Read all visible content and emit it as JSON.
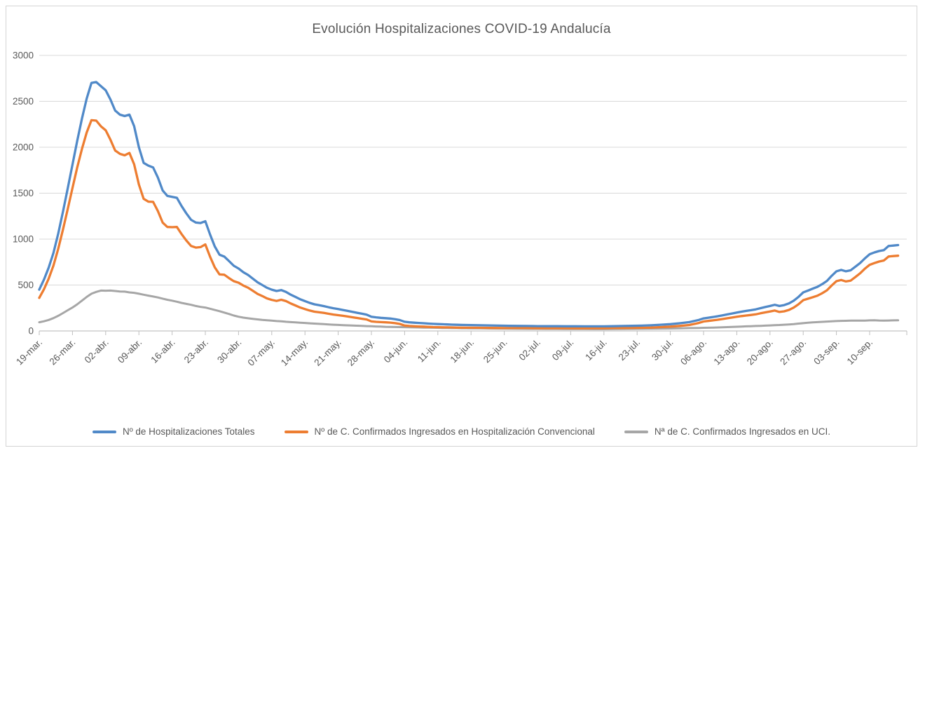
{
  "style": {
    "background": "#ffffff",
    "border_color": "#d4d4d4",
    "grid_color": "#d9d9d9",
    "axis_color": "#c3c3c3",
    "tick_color": "#bfbfbf",
    "text_color": "#595959"
  },
  "chart_data": {
    "type": "line",
    "title": "Evolución Hospitalizaciones COVID-19 Andalucía",
    "xlabel": "",
    "ylabel": "",
    "ylim": [
      0,
      3000
    ],
    "y_ticks": [
      0,
      500,
      1000,
      1500,
      2000,
      2500,
      3000
    ],
    "grid": true,
    "legend_position": "bottom",
    "x_unit": "days since 19-mar",
    "x_range_days": [
      0,
      181
    ],
    "x_tick_days": [
      0,
      7,
      14,
      21,
      28,
      35,
      42,
      49,
      56,
      63,
      70,
      77,
      84,
      91,
      98,
      105,
      112,
      119,
      126,
      133,
      140,
      147,
      154,
      161,
      168,
      175
    ],
    "x_tick_labels": [
      "19-mar.",
      "26-mar.",
      "02-abr.",
      "09-abr.",
      "16-abr.",
      "23-abr.",
      "30-abr.",
      "07-may.",
      "14-may.",
      "21-may.",
      "28-may.",
      "04-jun.",
      "11-jun.",
      "18-jun.",
      "25-jun.",
      "02-jul.",
      "09-jul.",
      "16-jul.",
      "23-jul.",
      "30-jul.",
      "06-ago.",
      "13-ago.",
      "20-ago.",
      "27-ago.",
      "03-sep.",
      "10-sep."
    ],
    "x": [
      0,
      1,
      2,
      3,
      4,
      5,
      6,
      7,
      8,
      9,
      10,
      11,
      12,
      13,
      14,
      15,
      16,
      17,
      18,
      19,
      20,
      21,
      22,
      23,
      24,
      25,
      26,
      27,
      28,
      29,
      30,
      31,
      32,
      33,
      34,
      35,
      36,
      37,
      38,
      39,
      40,
      41,
      42,
      43,
      44,
      45,
      46,
      47,
      48,
      49,
      50,
      51,
      52,
      53,
      54,
      55,
      56,
      57,
      58,
      59,
      60,
      61,
      62,
      63,
      64,
      65,
      66,
      67,
      68,
      69,
      70,
      71,
      72,
      73,
      74,
      75,
      76,
      77,
      78,
      79,
      80,
      81,
      82,
      83,
      84,
      85,
      86,
      87,
      88,
      89,
      90,
      91,
      93,
      95,
      97,
      99,
      101,
      103,
      105,
      107,
      109,
      111,
      113,
      115,
      117,
      119,
      121,
      123,
      125,
      127,
      129,
      131,
      133,
      135,
      137,
      139,
      140,
      141,
      142,
      143,
      144,
      145,
      146,
      147,
      148,
      149,
      150,
      151,
      152,
      153,
      154,
      155,
      156,
      157,
      158,
      159,
      160,
      161,
      162,
      163,
      164,
      165,
      166,
      167,
      168,
      169,
      170,
      171,
      172,
      173,
      174,
      175,
      176,
      177,
      178,
      179,
      180,
      181
    ],
    "series": [
      {
        "name": "Nº de Hospitalizaciones Totales",
        "color": "#5089c8",
        "values": [
          450,
          560,
          690,
          850,
          1060,
          1300,
          1550,
          1810,
          2070,
          2310,
          2530,
          2700,
          2710,
          2665,
          2620,
          2520,
          2400,
          2355,
          2340,
          2355,
          2230,
          2000,
          1830,
          1800,
          1780,
          1670,
          1530,
          1470,
          1460,
          1450,
          1360,
          1280,
          1210,
          1180,
          1175,
          1195,
          1050,
          920,
          830,
          810,
          760,
          710,
          680,
          640,
          610,
          570,
          530,
          500,
          470,
          450,
          435,
          445,
          425,
          395,
          370,
          345,
          325,
          305,
          290,
          280,
          270,
          258,
          247,
          238,
          228,
          218,
          208,
          198,
          188,
          178,
          155,
          148,
          143,
          139,
          135,
          128,
          118,
          100,
          94,
          90,
          87,
          84,
          80,
          77,
          75,
          73,
          71,
          69,
          67,
          66,
          65,
          64,
          62,
          60,
          58,
          56,
          55,
          54,
          53,
          52,
          52,
          51,
          51,
          50,
          50,
          50,
          52,
          54,
          56,
          58,
          62,
          68,
          74,
          84,
          96,
          120,
          137,
          144,
          152,
          160,
          170,
          180,
          190,
          200,
          210,
          218,
          226,
          235,
          248,
          260,
          272,
          285,
          272,
          282,
          300,
          330,
          370,
          420,
          440,
          460,
          480,
          510,
          545,
          600,
          650,
          665,
          650,
          660,
          700,
          740,
          790,
          835,
          855,
          870,
          880,
          925,
          930,
          935
        ]
      },
      {
        "name": "Nº de C. Confirmados Ingresados en Hospitalización Convencional",
        "color": "#ed7d31",
        "values": [
          360,
          455,
          570,
          712,
          895,
          1105,
          1325,
          1555,
          1780,
          1980,
          2160,
          2295,
          2290,
          2228,
          2185,
          2082,
          1965,
          1928,
          1912,
          1938,
          1815,
          1595,
          1438,
          1408,
          1405,
          1305,
          1180,
          1132,
          1130,
          1132,
          1055,
          985,
          925,
          908,
          913,
          942,
          808,
          692,
          615,
          612,
          575,
          542,
          525,
          495,
          472,
          438,
          404,
          380,
          354,
          338,
          327,
          340,
          325,
          299,
          277,
          255,
          238,
          222,
          210,
          203,
          196,
          187,
          179,
          172,
          165,
          157,
          149,
          141,
          133,
          125,
          104,
          99,
          96,
          94,
          91,
          85,
          76,
          59,
          54,
          51,
          49,
          47,
          44,
          42,
          41,
          40,
          39,
          38,
          36,
          36,
          35,
          35,
          34,
          33,
          32,
          31,
          31,
          31,
          30,
          30,
          30,
          30,
          29,
          29,
          30,
          30,
          31,
          32,
          33,
          34,
          37,
          42,
          47,
          55,
          65,
          87,
          103,
          109,
          115,
          122,
          130,
          138,
          146,
          154,
          162,
          168,
          174,
          181,
          192,
          202,
          212,
          222,
          207,
          214,
          229,
          255,
          290,
          335,
          351,
          367,
          384,
          411,
          443,
          495,
          542,
          555,
          539,
          548,
          587,
          628,
          678,
          720,
          739,
          756,
          767,
          811,
          815,
          819
        ]
      },
      {
        "name": "Nª de C. Confirmados Ingresados en UCI.",
        "color": "#a6a6a6",
        "values": [
          95,
          105,
          120,
          140,
          165,
          195,
          225,
          255,
          290,
          330,
          370,
          405,
          425,
          440,
          438,
          440,
          435,
          430,
          428,
          420,
          415,
          405,
          395,
          385,
          375,
          365,
          352,
          340,
          330,
          318,
          305,
          295,
          285,
          272,
          262,
          255,
          242,
          228,
          215,
          200,
          185,
          168,
          155,
          145,
          138,
          132,
          126,
          120,
          116,
          112,
          108,
          105,
          100,
          96,
          93,
          90,
          87,
          83,
          80,
          77,
          74,
          71,
          68,
          66,
          63,
          61,
          59,
          57,
          55,
          53,
          51,
          49,
          47,
          45,
          44,
          43,
          42,
          41,
          40,
          39,
          38,
          37,
          36,
          35,
          34,
          33,
          32,
          31,
          31,
          30,
          30,
          29,
          28,
          27,
          26,
          25,
          24,
          23,
          23,
          22,
          22,
          21,
          21,
          21,
          20,
          20,
          21,
          22,
          23,
          24,
          25,
          26,
          27,
          29,
          31,
          33,
          34,
          35,
          37,
          38,
          40,
          42,
          44,
          46,
          48,
          50,
          52,
          54,
          56,
          58,
          60,
          63,
          65,
          68,
          71,
          75,
          80,
          85,
          89,
          93,
          96,
          99,
          102,
          105,
          108,
          110,
          111,
          112,
          113,
          112,
          113,
          115,
          116,
          114,
          113,
          114,
          115,
          116
        ]
      }
    ]
  }
}
